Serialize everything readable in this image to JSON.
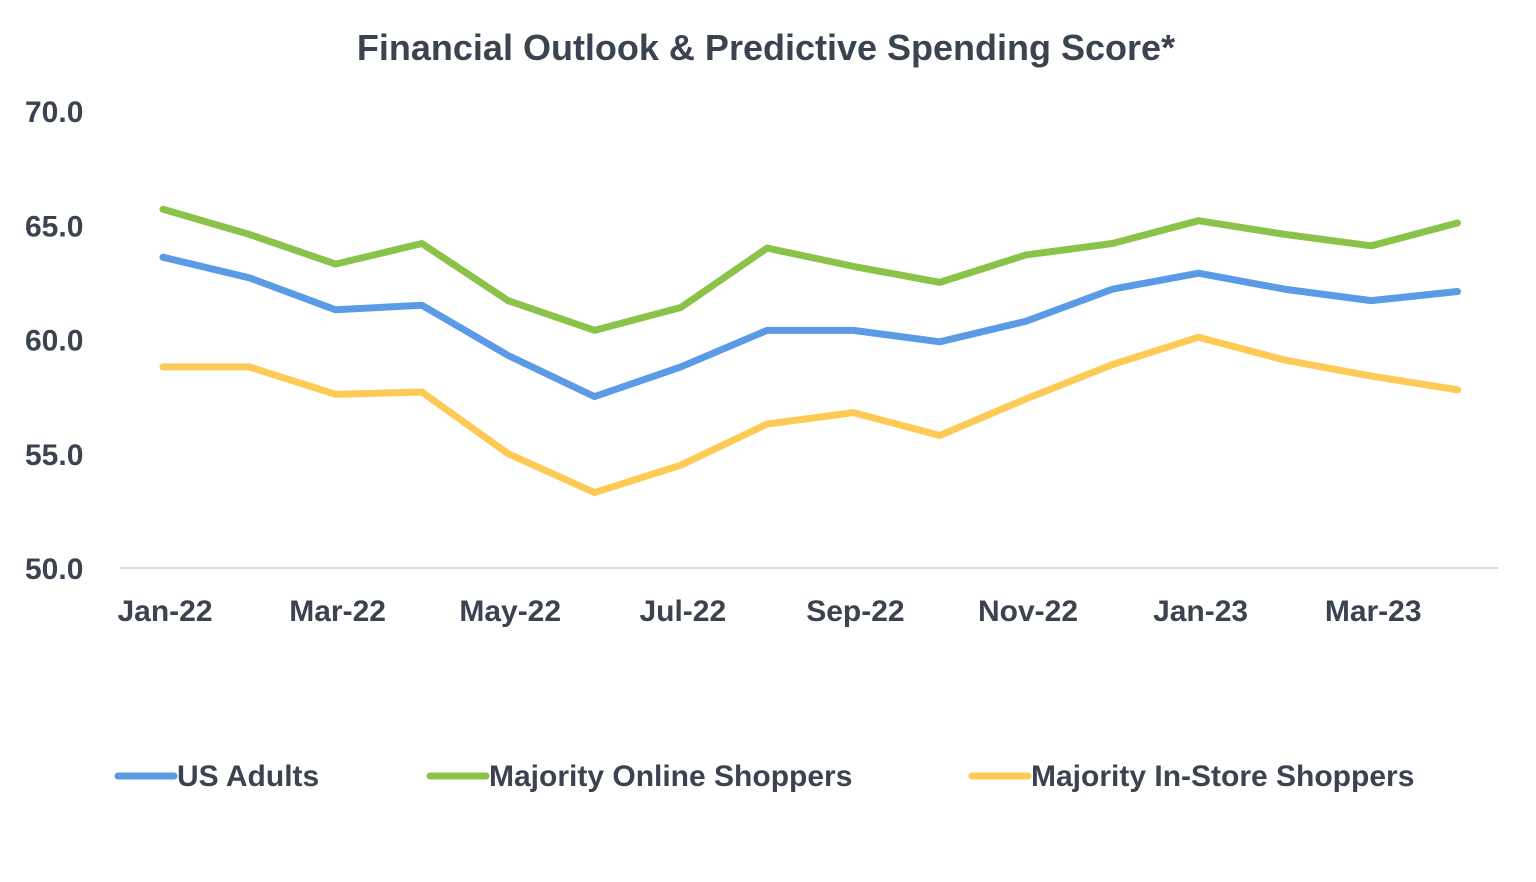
{
  "chart_data": {
    "type": "line",
    "title": "Financial Outlook & Predictive Spending Score*",
    "xlabel": "",
    "ylabel": "",
    "ylim": [
      50,
      70
    ],
    "yticks": [
      "50.0",
      "55.0",
      "60.0",
      "65.0",
      "70.0"
    ],
    "grid": false,
    "legend_position": "bottom",
    "categories": [
      "Jan-22",
      "Feb-22",
      "Mar-22",
      "Apr-22",
      "May-22",
      "Jun-22",
      "Jul-22",
      "Aug-22",
      "Sep-22",
      "Oct-22",
      "Nov-22",
      "Dec-22",
      "Jan-23",
      "Feb-23",
      "Mar-23",
      "Apr-23"
    ],
    "xtick_labels": [
      "Jan-22",
      "Mar-22",
      "May-22",
      "Jul-22",
      "Sep-22",
      "Nov-22",
      "Jan-23",
      "Mar-23"
    ],
    "series": [
      {
        "name": "US Adults",
        "color": "#5b9be6",
        "values": [
          63.6,
          62.7,
          61.3,
          61.5,
          59.3,
          57.5,
          58.8,
          60.4,
          60.4,
          59.9,
          60.8,
          62.2,
          62.9,
          62.2,
          61.7,
          62.1
        ]
      },
      {
        "name": "Majority Online Shoppers",
        "color": "#8bc34a",
        "values": [
          65.7,
          64.6,
          63.3,
          64.2,
          61.7,
          60.4,
          61.4,
          64.0,
          63.2,
          62.5,
          63.7,
          64.2,
          65.2,
          64.6,
          64.1,
          65.1
        ]
      },
      {
        "name": "Majority In-Store Shoppers",
        "color": "#fdcb55",
        "values": [
          58.8,
          58.8,
          57.6,
          57.7,
          55.0,
          53.3,
          54.5,
          56.3,
          56.8,
          55.8,
          57.4,
          58.9,
          60.1,
          59.1,
          58.4,
          57.8
        ]
      }
    ]
  }
}
